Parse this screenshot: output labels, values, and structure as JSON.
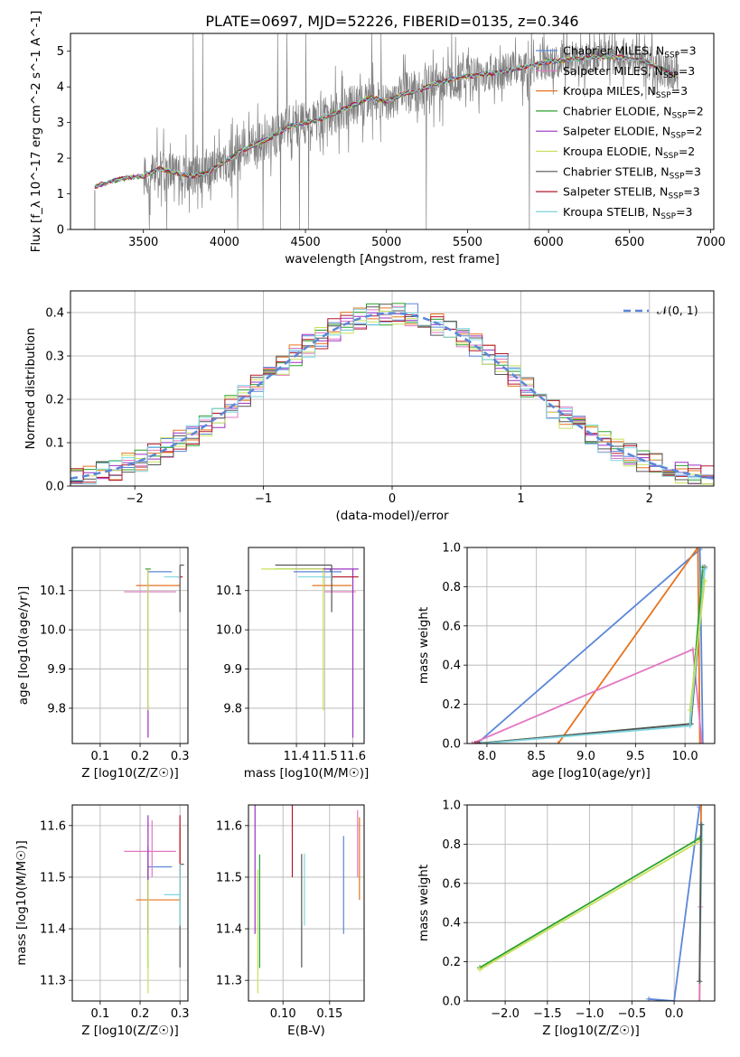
{
  "title": "PLATE=0697, MJD=52226, FIBERID=0135, z=0.346",
  "colors": {
    "chabrier_miles": "#5b87d8",
    "salpeter_miles": "#e377c2",
    "kroupa_miles": "#e6731f",
    "chabrier_elodie": "#2ca02c",
    "salpeter_elodie": "#9b30c0",
    "kroupa_elodie": "#c8e05a",
    "chabrier_stelib": "#555555",
    "salpeter_stelib": "#b2182b",
    "kroupa_stelib": "#7fd6e0",
    "spectrum": "#808080",
    "normal": "#5b87d8"
  },
  "models": [
    {
      "name": "Chabrier MILES",
      "n": "3",
      "color": "#5b87d8",
      "age": 10.148,
      "age_err": [
        0.0,
        0.006
      ],
      "Z": 0.22,
      "Z_err": [
        0.0,
        0.06
      ],
      "mass": 11.52,
      "mass_err": [
        0.13,
        0.04
      ],
      "ebv": 0.165
    },
    {
      "name": "Salpeter MILES",
      "n": "3",
      "color": "#e377c2",
      "age": 10.097,
      "age_err": [
        0.0,
        0.0
      ],
      "Z": 0.23,
      "Z_err": [
        0.07,
        0.06
      ],
      "mass": 11.55,
      "mass_err": [
        0.05,
        0.06
      ],
      "ebv": 0.18
    },
    {
      "name": "Kroupa MILES",
      "n": "3",
      "color": "#e6731f",
      "age": 10.113,
      "age_err": [
        0.0,
        0.0
      ],
      "Z": 0.3,
      "Z_err": [
        0.11,
        0.0
      ],
      "mass": 11.456,
      "mass_err": [
        0.0,
        0.14
      ],
      "ebv": 0.182
    },
    {
      "name": "Chabrier ELODIE",
      "n": "2",
      "color": "#2ca02c",
      "age": 10.155,
      "age_err": [
        0.0,
        0.0
      ],
      "Z": 0.22,
      "Z_err": [
        0.0,
        0.0
      ],
      "mass": 11.524,
      "mass_err": [
        0.2,
        0.0
      ],
      "ebv": 0.075
    },
    {
      "name": "Salpeter ELODIE",
      "n": "2",
      "color": "#9b30c0",
      "age": 10.155,
      "age_err": [
        0.43,
        0.0
      ],
      "Z": 0.22,
      "Z_err": [
        0.0,
        0.0
      ],
      "mass": 11.6,
      "mass_err": [
        0.21,
        0.02
      ],
      "ebv": 0.07
    },
    {
      "name": "Kroupa ELODIE",
      "n": "2",
      "color": "#c8e05a",
      "age": 10.155,
      "age_err": [
        0.36,
        0.0
      ],
      "Z": 0.22,
      "Z_err": [
        0.0,
        0.0
      ],
      "mass": 11.495,
      "mass_err": [
        0.22,
        0.0
      ],
      "ebv": 0.073
    },
    {
      "name": "Chabrier STELIB",
      "n": "3",
      "color": "#555555",
      "age": 10.165,
      "age_err": [
        0.12,
        0.0
      ],
      "Z": 0.3,
      "Z_err": [
        0.0,
        0.01
      ],
      "mass": 11.525,
      "mass_err": [
        0.2,
        0.0
      ],
      "ebv": 0.12
    },
    {
      "name": "Salpeter STELIB",
      "n": "3",
      "color": "#b2182b",
      "age": 10.135,
      "age_err": [
        0.0,
        0.0
      ],
      "Z": 0.3,
      "Z_err": [
        0.0,
        0.0
      ],
      "mass": 11.58,
      "mass_err": [
        0.08,
        0.04
      ],
      "ebv": 0.11
    },
    {
      "name": "Kroupa STELIB",
      "n": "3",
      "color": "#7fd6e0",
      "age": 10.135,
      "age_err": [
        0.0,
        0.0
      ],
      "Z": 0.3,
      "Z_err": [
        0.04,
        0.0
      ],
      "mass": 11.466,
      "mass_err": [
        0.06,
        0.06
      ],
      "ebv": 0.123
    }
  ],
  "chart_data": [
    {
      "id": "spectrum",
      "type": "line",
      "title": "PLATE=0697, MJD=52226, FIBERID=0135, z=0.346",
      "xlabel": "wavelength [Angstrom, rest frame]",
      "ylabel": "Flux [f_λ 10^-17 erg cm^-2 s^-1 A^-1]",
      "xlim": [
        3050,
        7020
      ],
      "ylim": [
        0,
        5.5
      ],
      "xticks": [
        3500,
        4000,
        4500,
        5000,
        5500,
        6000,
        6500,
        7000
      ],
      "yticks": [
        0,
        1,
        2,
        3,
        4,
        5
      ],
      "grid": false,
      "legend": "top-right",
      "series_envelope": {
        "x": [
          3200,
          3300,
          3400,
          3500,
          3600,
          3700,
          3800,
          3900,
          4000,
          4100,
          4200,
          4300,
          4400,
          4500,
          4600,
          4700,
          4800,
          4900,
          5000,
          5100,
          5200,
          5300,
          5400,
          5500,
          5600,
          5700,
          5800,
          5900,
          6000,
          6100,
          6200,
          6300,
          6400,
          6500,
          6600,
          6700,
          6800
        ],
        "y": [
          1.2,
          1.35,
          1.45,
          1.5,
          1.7,
          1.6,
          1.5,
          1.6,
          1.9,
          2.2,
          2.4,
          2.6,
          2.9,
          3.0,
          3.1,
          3.3,
          3.5,
          3.7,
          3.6,
          3.8,
          3.9,
          4.1,
          4.2,
          4.3,
          4.35,
          4.4,
          4.5,
          4.6,
          4.7,
          4.75,
          4.8,
          4.85,
          4.85,
          4.8,
          4.7,
          4.5,
          4.3
        ]
      }
    },
    {
      "id": "residuals",
      "type": "line",
      "xlabel": "(data-model)/error",
      "ylabel": "Normed distribution",
      "xlim": [
        -2.5,
        2.5
      ],
      "ylim": [
        0,
        0.45
      ],
      "xticks": [
        -2,
        -1,
        0,
        1,
        2
      ],
      "yticks": [
        0.0,
        0.1,
        0.2,
        0.3,
        0.4
      ],
      "grid": true,
      "legend": "top-right",
      "legend_label": "𝒩(0, 1)"
    },
    {
      "id": "age_vs_Z",
      "type": "scatter",
      "xlabel": "Z [log10(Z/Z☉)]",
      "ylabel": "age  [log10(age/yr)]",
      "xlim": [
        0.03,
        0.32
      ],
      "ylim": [
        9.71,
        10.21
      ],
      "xticks": [
        0.1,
        0.2,
        0.3
      ],
      "yticks": [
        9.8,
        9.9,
        10.0,
        10.1
      ],
      "grid": true
    },
    {
      "id": "age_vs_mass",
      "type": "scatter",
      "xlabel": "mass [log10(M/M☉)]",
      "xlim": [
        11.23,
        11.64
      ],
      "ylim": [
        9.71,
        10.21
      ],
      "xticks": [
        11.4,
        11.5,
        11.6
      ],
      "yticks": [
        9.8,
        9.9,
        10.0,
        10.1
      ],
      "grid": true
    },
    {
      "id": "weight_vs_age",
      "type": "line",
      "xlabel": "age  [log10(age/yr)]",
      "ylabel": "mass weight",
      "xlim": [
        7.8,
        10.3
      ],
      "ylim": [
        0,
        1
      ],
      "xticks": [
        8.0,
        8.5,
        9.0,
        9.5,
        10.0
      ],
      "yticks": [
        0.0,
        0.2,
        0.4,
        0.6,
        0.8,
        1.0
      ],
      "grid": true,
      "series": [
        {
          "color": "#5b87d8",
          "x": [
            7.9,
            10.15,
            10.18
          ],
          "y": [
            0.0,
            0.99,
            0.0
          ]
        },
        {
          "color": "#e6731f",
          "x": [
            8.72,
            10.13,
            10.15
          ],
          "y": [
            0.0,
            1.0,
            0.0
          ]
        },
        {
          "color": "#e377c2",
          "x": [
            7.85,
            10.08,
            10.17
          ],
          "y": [
            0.0,
            0.48,
            0.0
          ]
        },
        {
          "color": "#2ca02c",
          "x": [
            7.9,
            10.05,
            10.18
          ],
          "y": [
            0.0,
            0.1,
            0.9
          ]
        },
        {
          "color": "#555555",
          "x": [
            7.9,
            10.06,
            10.2
          ],
          "y": [
            0.0,
            0.1,
            0.9
          ]
        },
        {
          "color": "#7fd6e0",
          "x": [
            7.95,
            10.05,
            10.2
          ],
          "y": [
            0.0,
            0.09,
            0.89
          ]
        },
        {
          "color": "#c8e05a",
          "x": [
            10.05,
            10.2
          ],
          "y": [
            0.17,
            0.83
          ]
        },
        {
          "color": "#b2182b",
          "x": [
            7.88,
            7.92
          ],
          "y": [
            0.0,
            0.0
          ]
        }
      ]
    },
    {
      "id": "mass_vs_Z",
      "type": "scatter",
      "xlabel": "Z [log10(Z/Z☉)]",
      "ylabel": "mass [log10(M/M☉)]",
      "xlim": [
        0.03,
        0.32
      ],
      "ylim": [
        11.26,
        11.64
      ],
      "xticks": [
        0.1,
        0.2,
        0.3
      ],
      "yticks": [
        11.3,
        11.4,
        11.5,
        11.6
      ],
      "grid": true
    },
    {
      "id": "mass_vs_ebv",
      "type": "scatter",
      "xlabel": "E(B-V)",
      "xlim": [
        0.063,
        0.187
      ],
      "ylim": [
        11.26,
        11.64
      ],
      "xticks": [
        0.1,
        0.15
      ],
      "yticks": [
        11.3,
        11.4,
        11.5,
        11.6
      ],
      "grid": true
    },
    {
      "id": "weight_vs_Z",
      "type": "line",
      "xlabel": "Z [log10(Z/Z☉)]",
      "ylabel": "mass weight",
      "xlim": [
        -2.45,
        0.48
      ],
      "ylim": [
        0,
        1
      ],
      "xticks": [
        -2.0,
        -1.5,
        -1.0,
        -0.5,
        0.0
      ],
      "yticks": [
        0.0,
        0.2,
        0.4,
        0.6,
        0.8,
        1.0
      ],
      "grid": true,
      "series": [
        {
          "color": "#5b87d8",
          "x": [
            -0.3,
            0.0,
            0.3
          ],
          "y": [
            0.01,
            0.0,
            0.99
          ]
        },
        {
          "color": "#e6731f",
          "x": [
            0.3,
            0.32,
            0.3
          ],
          "y": [
            0.0,
            1.0,
            0.0
          ]
        },
        {
          "color": "#e377c2",
          "x": [
            0.3,
            0.31
          ],
          "y": [
            0.0,
            0.48
          ]
        },
        {
          "color": "#2ca02c",
          "x": [
            -2.3,
            0.3
          ],
          "y": [
            0.17,
            0.83
          ]
        },
        {
          "color": "#c8e05a",
          "x": [
            -2.3,
            0.32
          ],
          "y": [
            0.16,
            0.82
          ]
        },
        {
          "color": "#7fd6e0",
          "x": [
            0.3,
            0.33
          ],
          "y": [
            0.1,
            0.9
          ]
        },
        {
          "color": "#555555",
          "x": [
            0.3,
            0.32
          ],
          "y": [
            0.1,
            0.9
          ]
        }
      ]
    }
  ]
}
